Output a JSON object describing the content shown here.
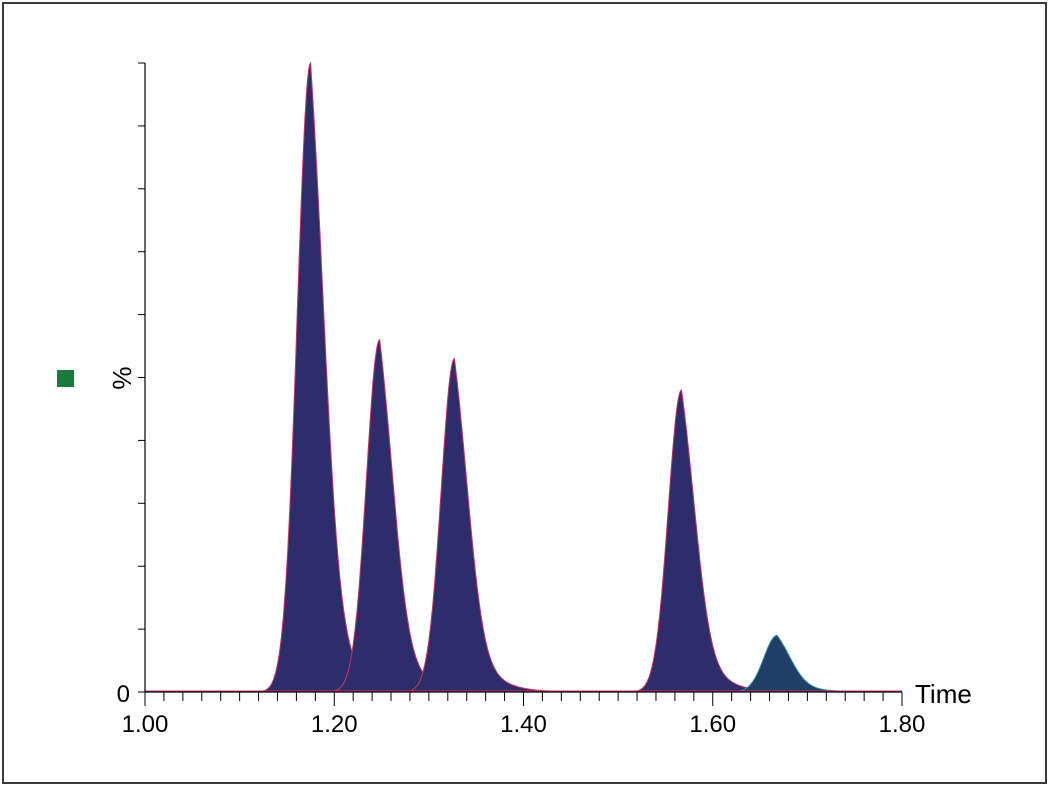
{
  "chart_data": {
    "type": "area",
    "xlabel": "Time",
    "ylabel": "%",
    "xlim": [
      1.0,
      1.8
    ],
    "ylim": [
      0,
      100
    ],
    "x_ticks": [
      "1.00",
      "1.20",
      "1.40",
      "1.60",
      "1.80"
    ],
    "y_tick_labels": [
      "0"
    ],
    "grid": false,
    "legend_marker_color": "#1a7a3c",
    "peaks": [
      {
        "rt": 1.175,
        "height": 100,
        "fill": "#2e2d6b",
        "edge": "#c8345a"
      },
      {
        "rt": 1.248,
        "height": 56,
        "fill": "#2e2d6b",
        "edge": "#c8345a"
      },
      {
        "rt": 1.327,
        "height": 53,
        "fill": "#2e2d6b",
        "edge": "#c8345a"
      },
      {
        "rt": 1.567,
        "height": 48,
        "fill": "#2e2d6b",
        "edge": "#c8345a"
      },
      {
        "rt": 1.668,
        "height": 9,
        "fill": "#1f3f66",
        "edge": "#3a8fa0"
      }
    ]
  }
}
